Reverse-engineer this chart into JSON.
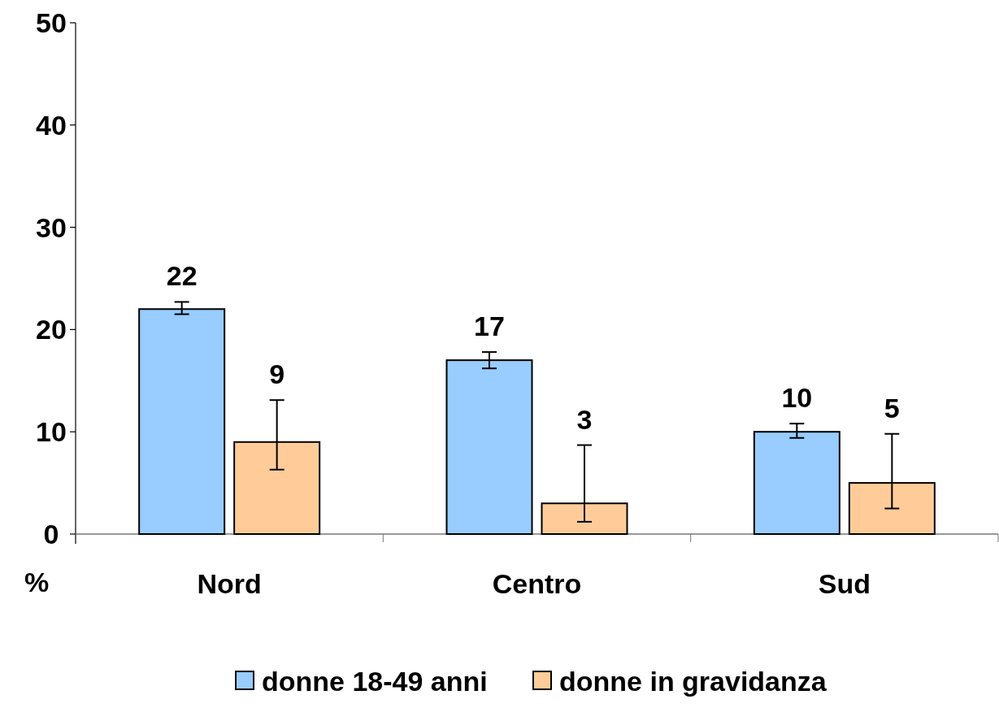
{
  "chart_data": {
    "type": "bar",
    "ylabel": "%",
    "categories": [
      "Nord",
      "Centro",
      "Sud"
    ],
    "series": [
      {
        "name": "donne 18-49 anni",
        "color": "#99ccff",
        "values": [
          22,
          17,
          10
        ],
        "errors": [
          [
            21.5,
            22.7
          ],
          [
            16.2,
            17.8
          ],
          [
            9.4,
            10.8
          ]
        ]
      },
      {
        "name": "donne in gravidanza",
        "color": "#ffcc99",
        "values": [
          9,
          3,
          5
        ],
        "errors": [
          [
            6.3,
            13.1
          ],
          [
            1.2,
            8.7
          ],
          [
            2.5,
            9.8
          ]
        ]
      }
    ],
    "ylim": [
      0,
      50
    ],
    "yticks": [
      0,
      10,
      20,
      30,
      40,
      50
    ],
    "data_labels": true,
    "legend": "bottom",
    "grid": false
  }
}
